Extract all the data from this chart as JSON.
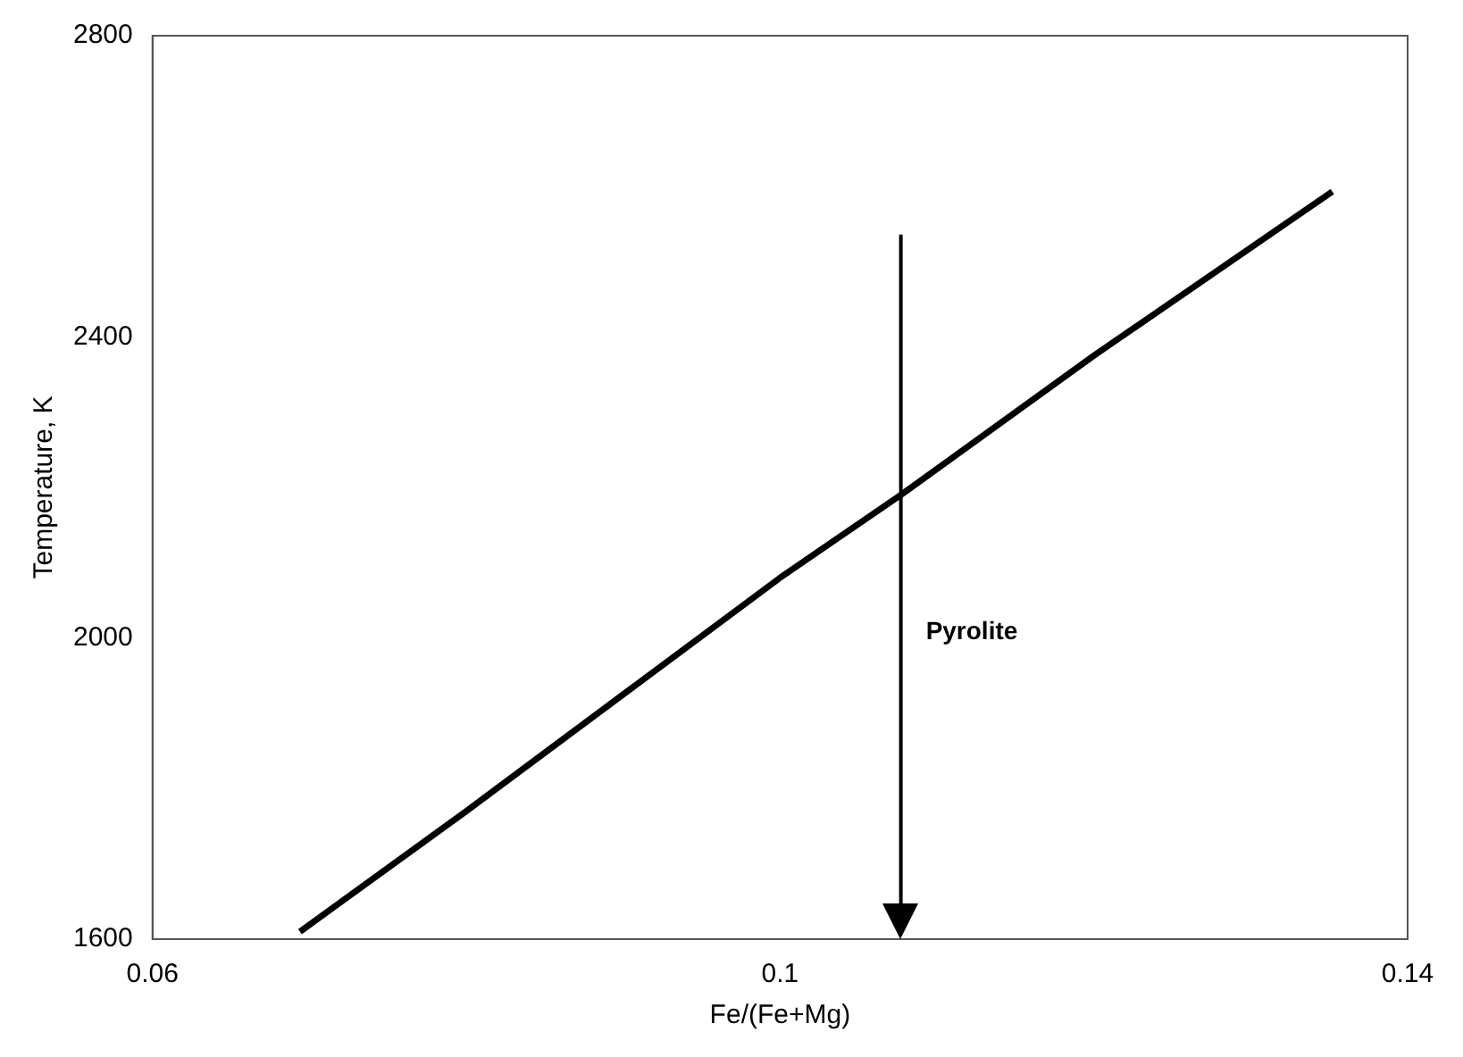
{
  "chart_data": {
    "type": "line",
    "xlabel": "Fe/(Fe+Mg)",
    "ylabel": "Temperature, K",
    "series": [
      {
        "color": "#000000",
        "x": [
          0.0694,
          0.08,
          0.09,
          0.1,
          0.1077,
          0.12,
          0.1352
        ],
        "values": [
          1610,
          1770,
          1925,
          2080,
          2190,
          2375,
          2593
        ]
      }
    ],
    "xlim": [
      0.06,
      0.14
    ],
    "xticks": [
      0.06,
      0.1,
      0.14
    ],
    "ylim": [
      1600,
      2800
    ],
    "yticks": [
      1600,
      2000,
      2400,
      2800
    ],
    "ref_lines": [
      {
        "axis": "x",
        "value": 0.1077,
        "label": "Pyrolite",
        "color": "#000000"
      }
    ],
    "grid": false,
    "legend": false,
    "marker": "none",
    "line_style": "solid"
  }
}
